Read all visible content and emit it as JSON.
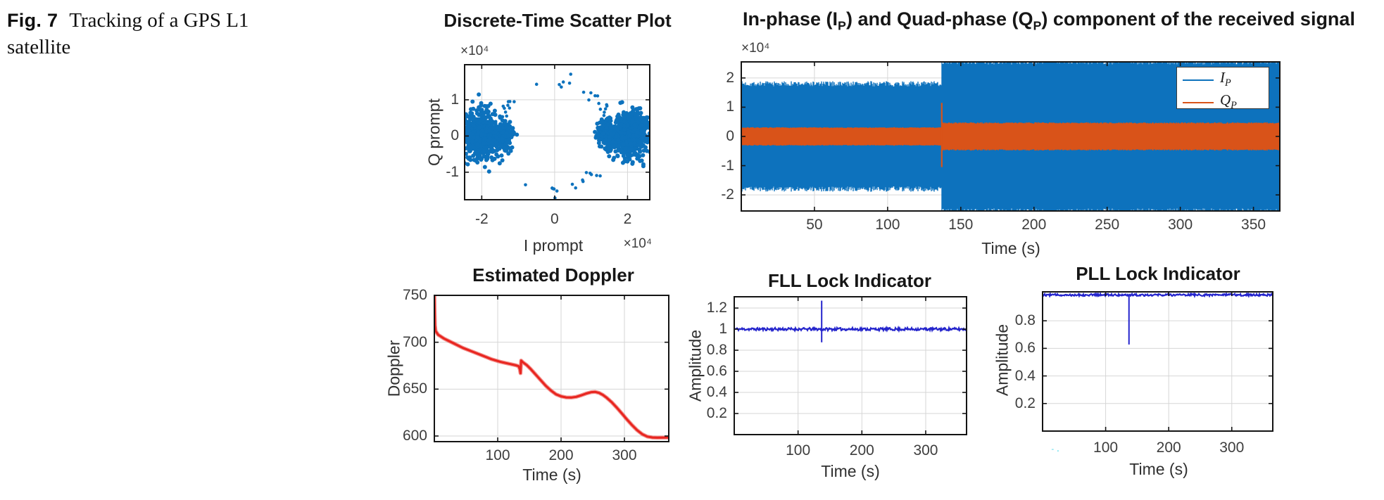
{
  "figure": {
    "label": "Fig. 7",
    "caption": "Tracking of a GPS L1 satellite"
  },
  "colors": {
    "matlab_blue": "#0d72bd",
    "matlab_orange": "#d95319",
    "doppler_red": "#e8251f",
    "indicator_blue": "#2424cc",
    "grid": "#d6d6d6",
    "axis": "#141414",
    "tick_text": "#3d3d3d",
    "title_text": "#161616",
    "artifact_cyan": "#43d7e8"
  },
  "artifact": {
    "text": "-."
  },
  "chart_data": [
    {
      "id": "scatter",
      "type": "scatter",
      "title": "Discrete-Time Scatter Plot",
      "xlabel": "I prompt",
      "ylabel": "Q prompt",
      "multiplier": "×10⁴",
      "xlim": [
        -24700,
        26100
      ],
      "ylim": [
        -17600,
        19700
      ],
      "xtick_values": [
        -20000,
        0,
        20000
      ],
      "xtick_labels": [
        "-2",
        "0",
        "2"
      ],
      "ytick_values": [
        10000,
        0,
        -10000
      ],
      "ytick_labels": [
        "1",
        "0",
        "-1"
      ],
      "grid": true,
      "marker_color": "#0d72bd",
      "seed": 20,
      "clusters": [
        {
          "cx": -20600,
          "cy": 300,
          "sx": 2500,
          "sy": 3200,
          "n": 650
        },
        {
          "cx": -14300,
          "cy": 0,
          "sx": 1500,
          "sy": 1900,
          "n": 230
        },
        {
          "cx": 20900,
          "cy": 400,
          "sx": 2500,
          "sy": 3200,
          "n": 650
        },
        {
          "cx": 14700,
          "cy": 500,
          "sx": 1500,
          "sy": 1900,
          "n": 230
        }
      ],
      "ring": {
        "rx": 15500,
        "ry": 15000,
        "n": 26,
        "clump_max": 3,
        "spread": 700
      }
    },
    {
      "id": "iq",
      "type": "noise-band",
      "title": "In-phase (IP) and Quad-phase (QP) component of the received signal",
      "title_parts": {
        "pre": "In-phase (I",
        "sub1": "P",
        "mid": ") and Quad-phase (Q",
        "sub2": "P",
        "post": ") component of the received signal"
      },
      "xlabel": "Time (s)",
      "multiplier": "×10⁴",
      "xlim": [
        0,
        368
      ],
      "ylim": [
        -25500,
        25500
      ],
      "xtick_values": [
        50,
        100,
        150,
        200,
        250,
        300,
        350
      ],
      "xtick_labels": [
        "50",
        "100",
        "150",
        "200",
        "250",
        "300",
        "350"
      ],
      "ytick_values": [
        20000,
        10000,
        0,
        -10000,
        -20000
      ],
      "ytick_labels": [
        "2",
        "1",
        "0",
        "-1",
        "-2"
      ],
      "grid": true,
      "jump_time": 137,
      "noise_frac": 0.05,
      "seed": 7,
      "series": [
        {
          "name": "IP",
          "color": "#0d72bd",
          "amp_before": 18000,
          "amp_after": 25900
        },
        {
          "name": "QP",
          "color": "#d95319",
          "amp_before": 3000,
          "amp_after": 4600
        }
      ],
      "legend": [
        {
          "label": "I",
          "sub": "P",
          "color": "#0d72bd"
        },
        {
          "label": "Q",
          "sub": "P",
          "color": "#d95319"
        }
      ],
      "orange_spike": {
        "t": 137,
        "lo": -10500,
        "hi": 11500
      }
    },
    {
      "id": "doppler",
      "type": "line",
      "title": "Estimated Doppler",
      "xlabel": "Time (s)",
      "ylabel": "Doppler",
      "xlim": [
        0,
        370
      ],
      "ylim": [
        594,
        750
      ],
      "xtick_values": [
        100,
        200,
        300
      ],
      "xtick_labels": [
        "100",
        "200",
        "300"
      ],
      "ytick_values": [
        750,
        700,
        650,
        600
      ],
      "ytick_labels": [
        "750",
        "700",
        "650",
        "600"
      ],
      "grid": true,
      "color": "#e8251f",
      "points": [
        [
          0,
          750
        ],
        [
          1,
          718
        ],
        [
          2,
          712
        ],
        [
          6,
          708
        ],
        [
          15,
          704
        ],
        [
          30,
          699
        ],
        [
          45,
          694
        ],
        [
          60,
          690
        ],
        [
          75,
          686
        ],
        [
          90,
          682
        ],
        [
          105,
          679
        ],
        [
          118,
          677
        ],
        [
          128,
          675.5
        ],
        [
          133,
          674.5
        ],
        [
          135,
          671
        ],
        [
          136,
          667
        ],
        [
          137,
          680.5
        ],
        [
          140,
          678.5
        ],
        [
          146,
          675.5
        ],
        [
          152,
          671.5
        ],
        [
          160,
          665.5
        ],
        [
          168,
          659.5
        ],
        [
          176,
          653.5
        ],
        [
          184,
          648.5
        ],
        [
          192,
          644.5
        ],
        [
          200,
          642.3
        ],
        [
          208,
          641.2
        ],
        [
          216,
          641.0
        ],
        [
          224,
          641.8
        ],
        [
          232,
          643.4
        ],
        [
          240,
          645.4
        ],
        [
          248,
          646.8
        ],
        [
          254,
          647.0
        ],
        [
          260,
          646.0
        ],
        [
          266,
          643.8
        ],
        [
          272,
          640.8
        ],
        [
          280,
          636.0
        ],
        [
          288,
          630.2
        ],
        [
          296,
          624.0
        ],
        [
          304,
          617.6
        ],
        [
          312,
          611.6
        ],
        [
          320,
          606.2
        ],
        [
          328,
          602.0
        ],
        [
          336,
          599.4
        ],
        [
          344,
          598.4
        ],
        [
          352,
          598.2
        ],
        [
          360,
          598.3
        ],
        [
          370,
          598.4
        ]
      ]
    },
    {
      "id": "fll",
      "type": "indicator",
      "title": "FLL Lock Indicator",
      "xlabel": "Time (s)",
      "ylabel": "Amplitude",
      "xlim": [
        0,
        364
      ],
      "ylim": [
        0,
        1.307
      ],
      "xtick_values": [
        100,
        200,
        300
      ],
      "xtick_labels": [
        "100",
        "200",
        "300"
      ],
      "ytick_values": [
        1.2,
        1,
        0.8,
        0.6,
        0.4,
        0.2
      ],
      "ytick_labels": [
        "1.2",
        "1",
        "0.8",
        "0.6",
        "0.4",
        "0.2"
      ],
      "grid": true,
      "color": "#2424cc",
      "base": 1.0,
      "noise": 0.013,
      "seed": 11,
      "spike": {
        "t": 137,
        "hi": 1.27,
        "lo": 0.875
      }
    },
    {
      "id": "pll",
      "type": "indicator",
      "title": "PLL Lock Indicator",
      "xlabel": "Time (s)",
      "ylabel": "Amplitude",
      "xlim": [
        0,
        365
      ],
      "ylim": [
        0,
        1.01
      ],
      "xtick_values": [
        100,
        200,
        300
      ],
      "xtick_labels": [
        "100",
        "200",
        "300"
      ],
      "ytick_values": [
        0.8,
        0.6,
        0.4,
        0.2
      ],
      "ytick_labels": [
        "0.8",
        "0.6",
        "0.4",
        "0.2"
      ],
      "grid": true,
      "color": "#2424cc",
      "base": 0.988,
      "noise": 0.008,
      "clip": 1.0,
      "seed": 12,
      "spike": {
        "t": 137,
        "lo": 0.628
      }
    }
  ]
}
